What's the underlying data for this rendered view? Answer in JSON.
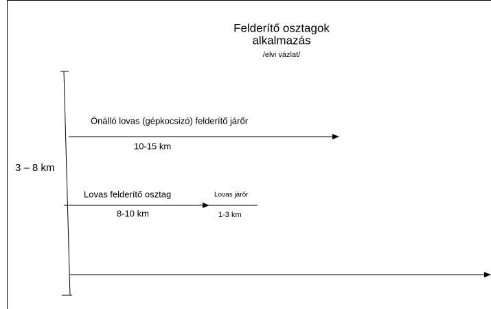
{
  "header": {
    "title_lines": [
      "Felderítő osztagok",
      "alkalmazás"
    ],
    "subtitle": "/elvi vázlat/"
  },
  "depth_label": "3 – 8 km",
  "units": [
    {
      "label": "Önálló lovas (gépkocsizó) felderítő járőr",
      "distance": "10-15 km"
    },
    {
      "label": "Lovas felderítő osztag",
      "distance": "8-10 km"
    },
    {
      "label": "Lovas járőr",
      "distance": "1-3 km"
    }
  ]
}
